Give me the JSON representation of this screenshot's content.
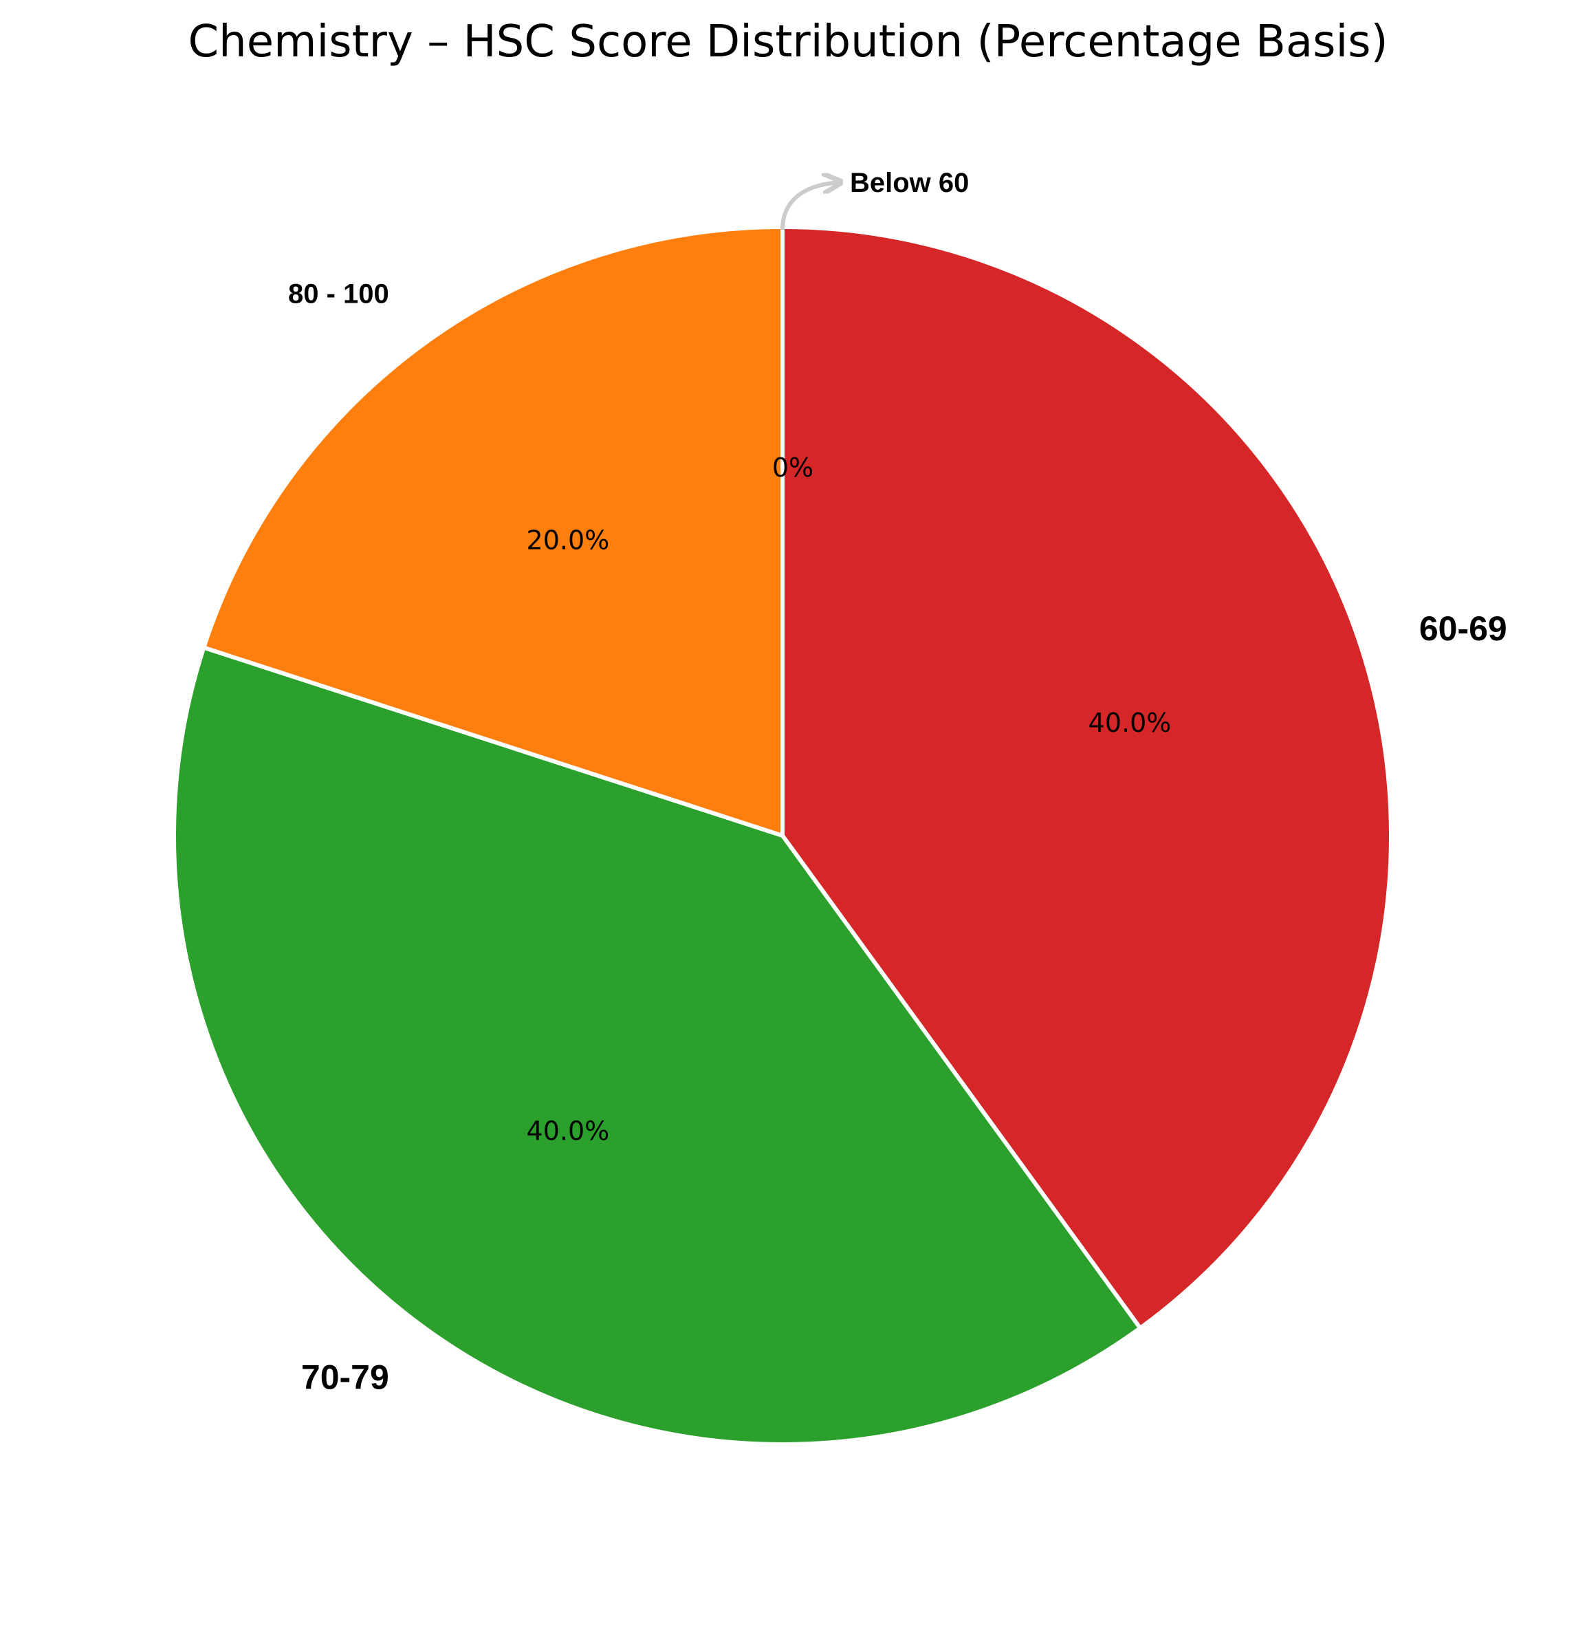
{
  "chart_data": {
    "type": "pie",
    "title": "Chemistry – HSC Score Distribution (Percentage Basis)",
    "start_angle_deg": 90,
    "direction": "clockwise",
    "slices": [
      {
        "label": "Below 60",
        "value": 0,
        "pct_label": "0%",
        "color": "#1f77b4"
      },
      {
        "label": "60-69",
        "value": 40,
        "pct_label": "40.0%",
        "color": "#d62728"
      },
      {
        "label": "70-79",
        "value": 40,
        "pct_label": "40.0%",
        "color": "#2ca02c"
      },
      {
        "label": "80 - 100",
        "value": 20,
        "pct_label": "20.0%",
        "color": "#ff7f0e"
      }
    ],
    "annotation": {
      "target": "Below 60",
      "arrow_color": "#cccccc"
    },
    "edge_color": "#ffffff"
  }
}
